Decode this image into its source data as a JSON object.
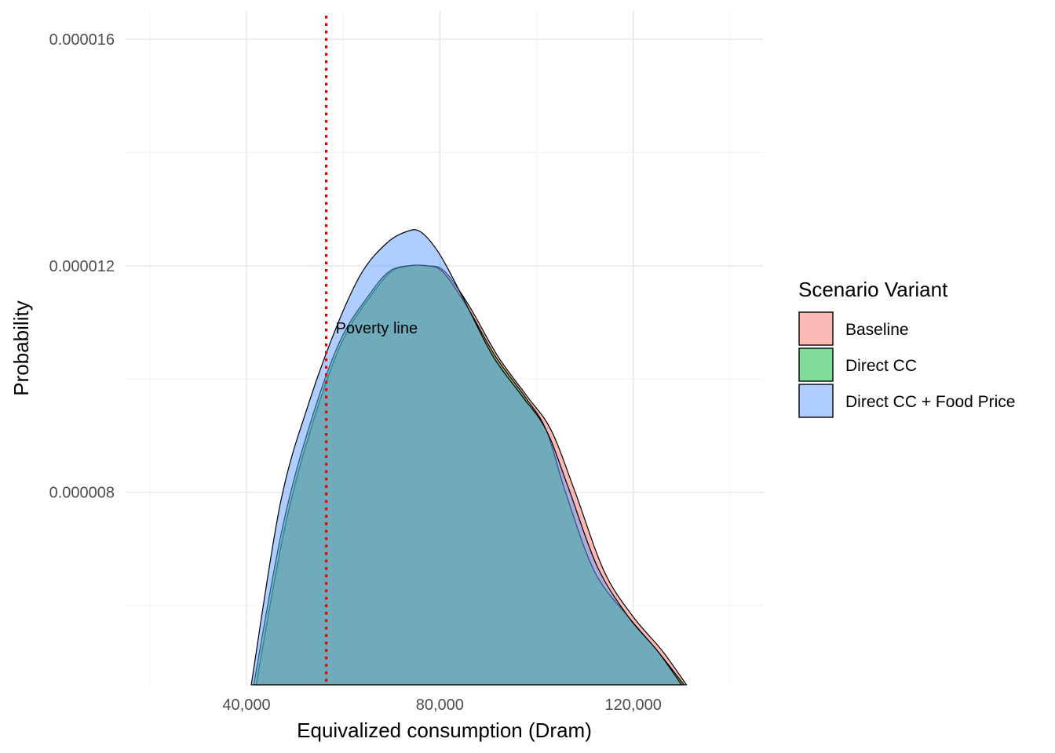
{
  "chart_data": {
    "type": "area",
    "xlabel": "Equivalized consumption (Dram)",
    "ylabel": "Probability",
    "xlim": [
      15000,
      147000
    ],
    "ylim": [
      4.6e-06,
      1.65e-05
    ],
    "x_ticks": [
      40000,
      80000,
      120000
    ],
    "x_tick_labels": [
      "40,000",
      "80,000",
      "120,000"
    ],
    "x_minor_ticks": [
      20000,
      60000,
      100000,
      140000
    ],
    "y_ticks": [
      8e-06,
      1.2e-05,
      1.6e-05
    ],
    "y_tick_labels": [
      "0.000008",
      "0.000012",
      "0.000016"
    ],
    "y_minor_ticks": [
      6e-06,
      1e-05,
      1.4e-05
    ],
    "grid": true,
    "legend": {
      "title": "Scenario Variant",
      "position": "right"
    },
    "poverty_line": {
      "x": 56500,
      "label": "Poverty line",
      "color": "#e00000",
      "label_y": 1.09e-05
    },
    "series": [
      {
        "name": "Baseline",
        "color": "#f8766d",
        "points": [
          [
            42000,
            4.6e-06
          ],
          [
            48000,
            7.4e-06
          ],
          [
            54000,
            9.3e-06
          ],
          [
            60000,
            1.07e-05
          ],
          [
            66000,
            1.15e-05
          ],
          [
            70000,
            1.19e-05
          ],
          [
            74000,
            1.2e-05
          ],
          [
            77500,
            1.2e-05
          ],
          [
            81000,
            1.19e-05
          ],
          [
            86000,
            1.13e-05
          ],
          [
            92000,
            1.04e-05
          ],
          [
            98000,
            9.7e-06
          ],
          [
            103000,
            9.1e-06
          ],
          [
            108000,
            8e-06
          ],
          [
            114000,
            6.6e-06
          ],
          [
            120000,
            5.8e-06
          ],
          [
            126000,
            5.2e-06
          ],
          [
            131000,
            4.6e-06
          ]
        ]
      },
      {
        "name": "Direct CC",
        "color": "#00ba38",
        "points": [
          [
            41500,
            4.6e-06
          ],
          [
            47500,
            7.4e-06
          ],
          [
            53500,
            9.3e-06
          ],
          [
            59500,
            1.07e-05
          ],
          [
            65500,
            1.15e-05
          ],
          [
            69500,
            1.19e-05
          ],
          [
            73500,
            1.2e-05
          ],
          [
            77000,
            1.2e-05
          ],
          [
            80500,
            1.19e-05
          ],
          [
            85500,
            1.13e-05
          ],
          [
            91500,
            1.04e-05
          ],
          [
            97500,
            9.7e-06
          ],
          [
            102000,
            9.1e-06
          ],
          [
            106000,
            8e-06
          ],
          [
            112000,
            6.6e-06
          ],
          [
            119000,
            5.8e-06
          ],
          [
            125000,
            5.2e-06
          ],
          [
            130500,
            4.6e-06
          ]
        ]
      },
      {
        "name": "Direct CC + Food Price",
        "color": "#619cff",
        "points": [
          [
            41000,
            4.6e-06
          ],
          [
            47000,
            7.8e-06
          ],
          [
            53000,
            9.6e-06
          ],
          [
            59000,
            1.1e-05
          ],
          [
            64000,
            1.19e-05
          ],
          [
            69000,
            1.24e-05
          ],
          [
            73000,
            1.26e-05
          ],
          [
            76000,
            1.26e-05
          ],
          [
            80000,
            1.22e-05
          ],
          [
            85000,
            1.14e-05
          ],
          [
            91000,
            1.04e-05
          ],
          [
            97000,
            9.7e-06
          ],
          [
            102000,
            9.1e-06
          ],
          [
            106500,
            8.1e-06
          ],
          [
            112500,
            6.7e-06
          ],
          [
            119000,
            5.8e-06
          ],
          [
            125000,
            5.2e-06
          ],
          [
            130000,
            4.6e-06
          ]
        ]
      }
    ]
  }
}
